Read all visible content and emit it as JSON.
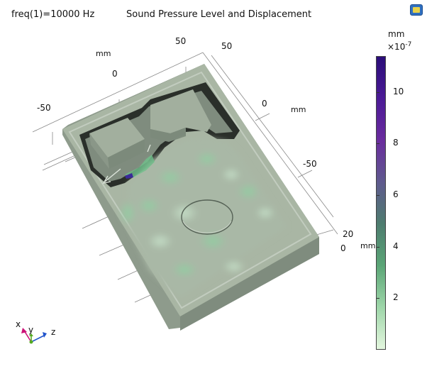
{
  "header": {
    "freq_label": "freq(1)=10000 Hz",
    "title": "Sound Pressure Level and Displacement"
  },
  "toolbar": {
    "logo_icon": "image-snapshot-icon"
  },
  "axes": {
    "left_unit": "mm",
    "left_ticks": [
      "-50",
      "0",
      "50"
    ],
    "right_ticks": [
      "50",
      "0",
      "-50"
    ],
    "right_unit": "mm",
    "depth_ticks": [
      "20",
      "0"
    ],
    "depth_unit": "mm"
  },
  "colorbar": {
    "unit": "mm",
    "multiplier_base": "×10",
    "multiplier_exp": "-7",
    "ticks": [
      "10",
      "8",
      "6",
      "4",
      "2"
    ],
    "tick_values": [
      10,
      8,
      6,
      4,
      2
    ],
    "min": 0,
    "max": 11.4,
    "colors": [
      "#e3f6de",
      "#9ed6a9",
      "#5aa576",
      "#4e7c6f",
      "#5f5a8e",
      "#6a2c9e",
      "#4b1a96",
      "#2a0d78"
    ]
  },
  "triad": {
    "x": "x",
    "y": "y",
    "z": "z",
    "colors": {
      "x": "#cc1177",
      "y": "#55aa22",
      "z": "#2255cc"
    }
  },
  "model": {
    "body_color": "#a9b6a4",
    "wall_color": "#8e9b8c",
    "shadow_color": "#2a2f2a"
  }
}
